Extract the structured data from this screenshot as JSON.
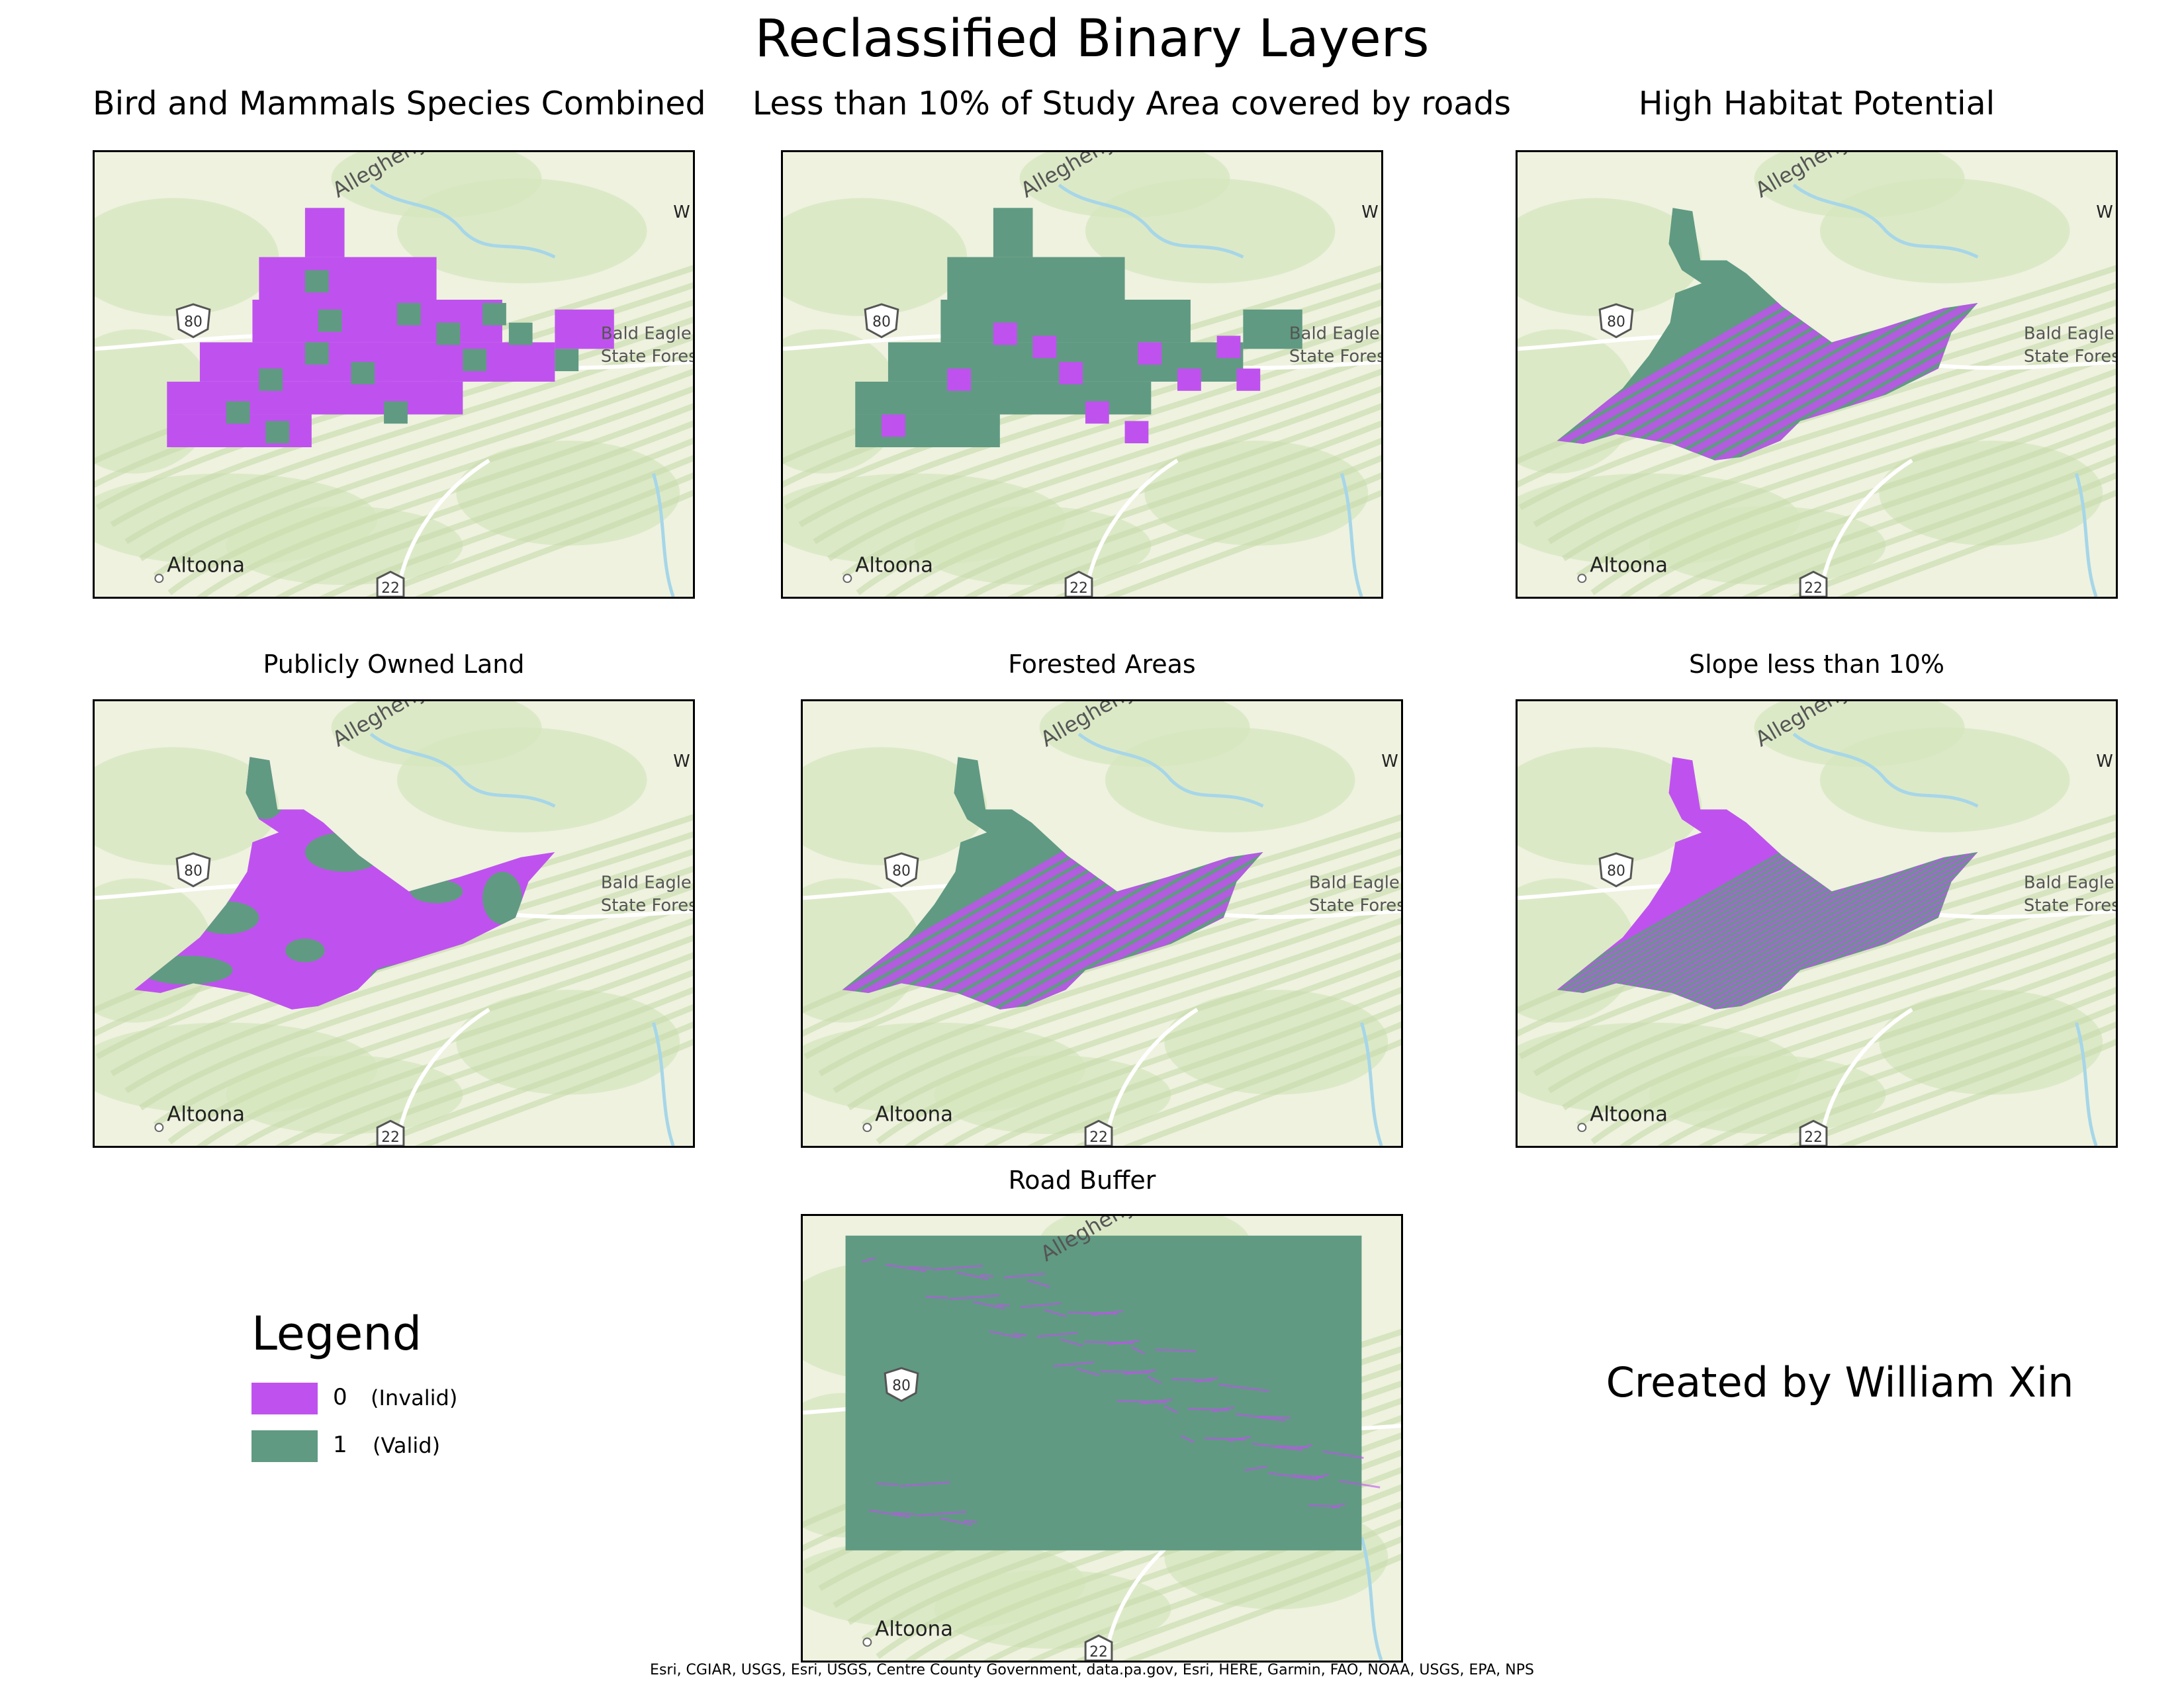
{
  "title": "Reclassified Binary Layers",
  "colors": {
    "invalid": "#bf52ee",
    "valid": "#609a82",
    "basemap": "#eef2df",
    "forest": "#d4e5bc",
    "water": "#a6d6e8",
    "road": "#ffffff"
  },
  "panels": [
    {
      "title": "Bird and Mammals Species Combined",
      "pattern": "grid"
    },
    {
      "title": "Less than 10% of Study Area covered by roads",
      "pattern": "grid"
    },
    {
      "title": "High Habitat Potential",
      "pattern": "stripes"
    },
    {
      "title": "Publicly Owned Land",
      "pattern": "blobs"
    },
    {
      "title": "Forested Areas",
      "pattern": "stripes"
    },
    {
      "title": "Slope less than 10%",
      "pattern": "dense"
    },
    {
      "title": "Road Buffer",
      "pattern": "rect"
    }
  ],
  "map_labels": {
    "altoona": "Altoona",
    "allegheny": "Allegheny",
    "route80": "80",
    "route22": "22",
    "eagle_line1": "Bald Eagle",
    "eagle_line2": "State Forest",
    "w": "W"
  },
  "legend": {
    "title": "Legend",
    "items": [
      {
        "value": "0",
        "desc": "(Invalid)"
      },
      {
        "value": "1",
        "desc": "(Valid)"
      }
    ]
  },
  "credit": "Created by William Xin",
  "attribution": "Esri, CGIAR, USGS, Esri, USGS, Centre County Government, data.pa.gov, Esri, HERE, Garmin, FAO, NOAA, USGS, EPA, NPS"
}
